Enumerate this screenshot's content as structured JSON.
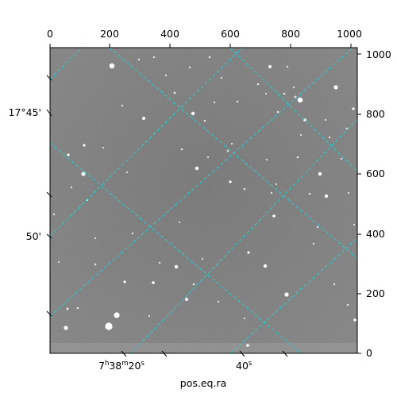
{
  "figure": {
    "xlabel": "pos.eq.ra",
    "pixel_x_ticks": [
      "0",
      "200",
      "400",
      "600",
      "800",
      "1000"
    ],
    "pixel_y_ticks": [
      "0",
      "200",
      "400",
      "600",
      "800",
      "1000"
    ],
    "dec_ticks": [
      "17°45'",
      "50'"
    ],
    "ra_ticks": [
      "7h38m20s",
      "40s"
    ],
    "ra_tick_parts": [
      {
        "h": "7",
        "m": "38",
        "s": "20"
      },
      {
        "s": "40"
      }
    ],
    "grid_color": "#19d3d3",
    "background_color": "#7a7a7a"
  }
}
